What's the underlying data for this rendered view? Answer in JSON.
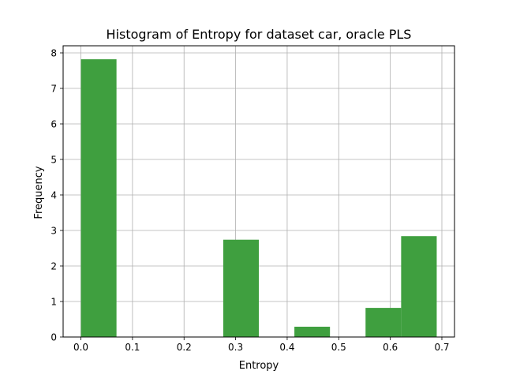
{
  "chart_data": {
    "type": "bar",
    "title": "Histogram of Entropy for dataset car, oracle PLS",
    "xlabel": "Entropy",
    "ylabel": "Frequency",
    "xlim": [
      -0.0345,
      0.7245
    ],
    "ylim": [
      0,
      8.2
    ],
    "xticks": [
      "0.0",
      "0.1",
      "0.2",
      "0.3",
      "0.4",
      "0.5",
      "0.6",
      "0.7"
    ],
    "xtick_values": [
      0.0,
      0.1,
      0.2,
      0.3,
      0.4,
      0.5,
      0.6,
      0.7
    ],
    "yticks": [
      "0",
      "1",
      "2",
      "3",
      "4",
      "5",
      "6",
      "7",
      "8"
    ],
    "ytick_values": [
      0,
      1,
      2,
      3,
      4,
      5,
      6,
      7,
      8
    ],
    "grid": true,
    "bar_color": "#3f9f3f",
    "bins": [
      {
        "x0": 0.0,
        "x1": 0.069,
        "value": 7.82
      },
      {
        "x0": 0.069,
        "x1": 0.138,
        "value": 0
      },
      {
        "x0": 0.138,
        "x1": 0.207,
        "value": 0
      },
      {
        "x0": 0.207,
        "x1": 0.276,
        "value": 0
      },
      {
        "x0": 0.276,
        "x1": 0.345,
        "value": 2.74
      },
      {
        "x0": 0.345,
        "x1": 0.414,
        "value": 0
      },
      {
        "x0": 0.414,
        "x1": 0.483,
        "value": 0.29
      },
      {
        "x0": 0.483,
        "x1": 0.552,
        "value": 0
      },
      {
        "x0": 0.552,
        "x1": 0.621,
        "value": 0.82
      },
      {
        "x0": 0.621,
        "x1": 0.69,
        "value": 2.84
      }
    ]
  }
}
